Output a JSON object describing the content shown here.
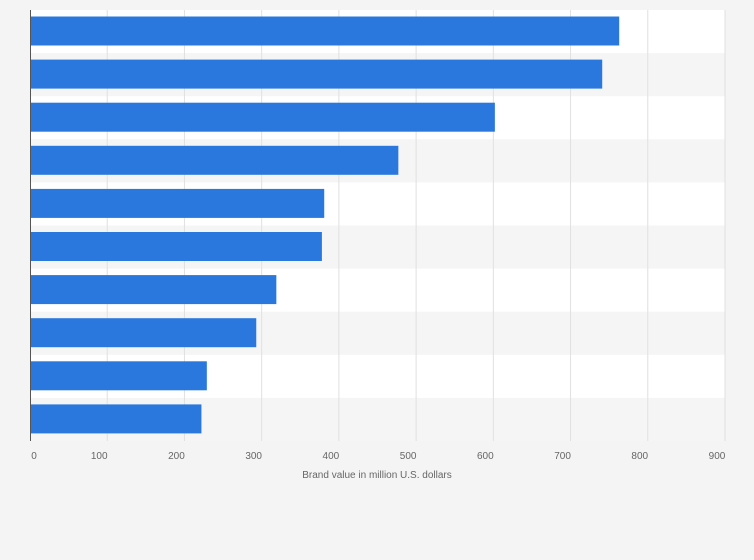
{
  "chart_data": {
    "type": "bar",
    "orientation": "horizontal",
    "title": "",
    "xlabel": "Brand value in million U.S. dollars",
    "ylabel": "",
    "xlim": [
      0,
      900
    ],
    "x_ticks": [
      0,
      100,
      200,
      300,
      400,
      500,
      600,
      700,
      800,
      900
    ],
    "grid": true,
    "legend": "none",
    "categories": [
      "",
      "",
      "",
      "",
      "",
      "",
      "",
      "",
      "",
      ""
    ],
    "values": [
      763,
      741,
      602,
      477,
      381,
      378,
      319,
      293,
      229,
      222
    ]
  },
  "colors": {
    "bar": "#2a78de",
    "plot_background": "#ffffff",
    "band_background": "#f5f5f5",
    "gridline": "#e0e0e0",
    "axis": "#555555",
    "page_background": "#f4f4f4"
  }
}
